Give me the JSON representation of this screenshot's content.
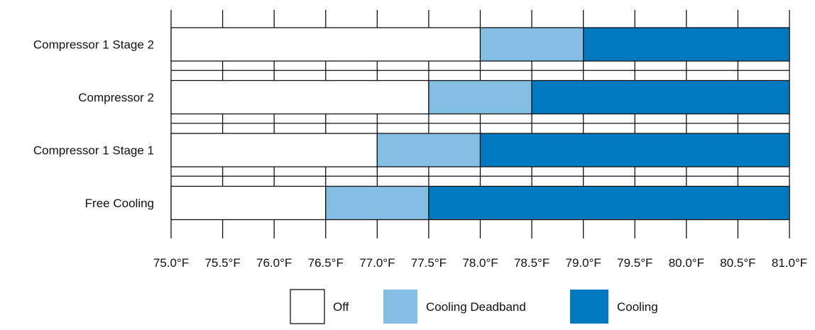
{
  "chart_data": {
    "type": "bar",
    "orientation": "horizontal",
    "stacked": true,
    "title": "",
    "xlabel": "",
    "ylabel": "",
    "categories": [
      "Compressor 1 Stage 2",
      "Compressor 2",
      "Compressor 1 Stage 1",
      "Free Cooling"
    ],
    "xlim": [
      75.0,
      81.0
    ],
    "x_ticks": [
      75.0,
      75.5,
      76.0,
      76.5,
      77.0,
      77.5,
      78.0,
      78.5,
      79.0,
      79.5,
      80.0,
      80.5,
      81.0
    ],
    "x_tick_labels": [
      "75.0°F",
      "75.5°F",
      "76.0°F",
      "76.5°F",
      "77.0°F",
      "77.5°F",
      "78.0°F",
      "78.5°F",
      "79.0°F",
      "79.5°F",
      "80.0°F",
      "80.5°F",
      "81.0°F"
    ],
    "grid": true,
    "legend_position": "bottom-center",
    "series": [
      {
        "name": "Off",
        "color": "#ffffff",
        "ranges": [
          [
            75.0,
            78.0
          ],
          [
            75.0,
            77.5
          ],
          [
            75.0,
            77.0
          ],
          [
            75.0,
            76.5
          ]
        ]
      },
      {
        "name": "Cooling Deadband",
        "color": "#82bfe2",
        "ranges": [
          [
            78.0,
            79.0
          ],
          [
            77.5,
            78.5
          ],
          [
            77.0,
            78.0
          ],
          [
            76.5,
            77.5
          ]
        ]
      },
      {
        "name": "Cooling",
        "color": "#0079c1",
        "ranges": [
          [
            79.0,
            81.0
          ],
          [
            78.5,
            81.0
          ],
          [
            78.0,
            81.0
          ],
          [
            77.5,
            81.0
          ]
        ]
      }
    ],
    "stroke_color": "#111111"
  }
}
